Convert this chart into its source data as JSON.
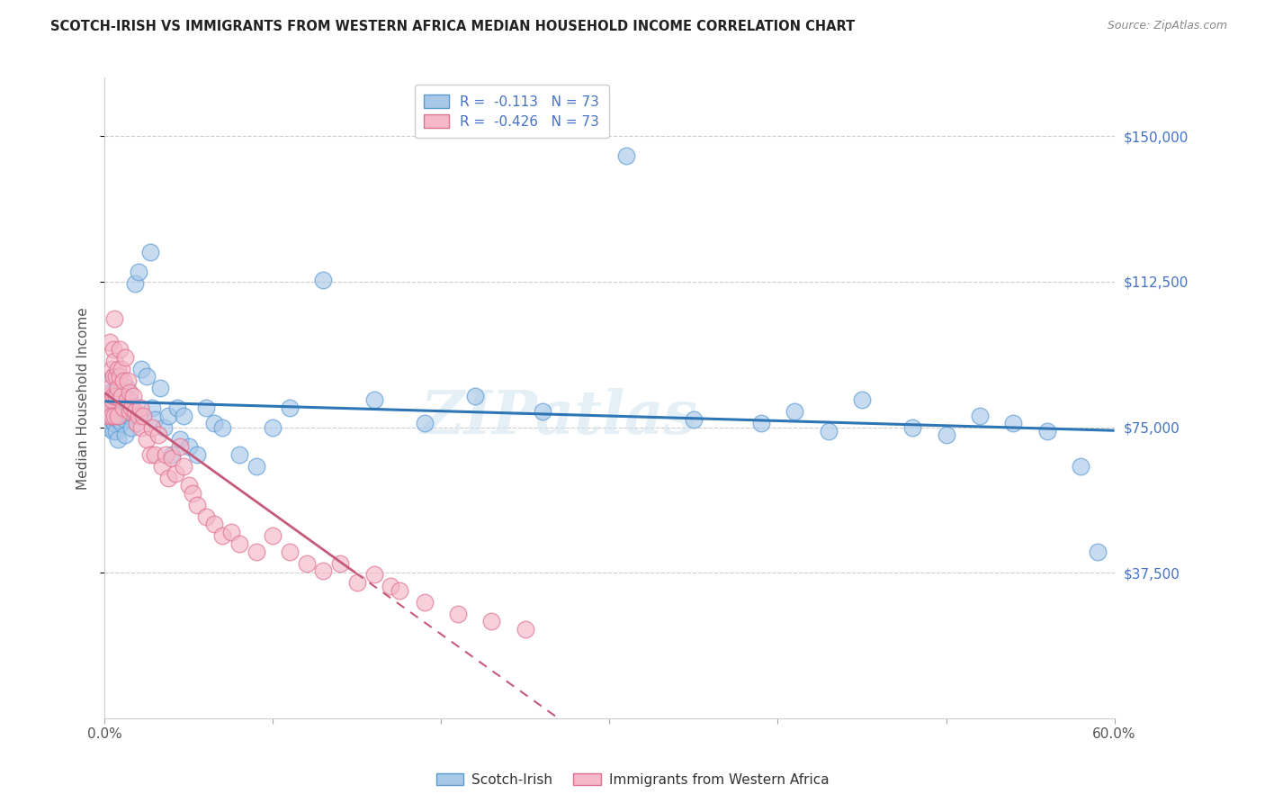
{
  "title": "SCOTCH-IRISH VS IMMIGRANTS FROM WESTERN AFRICA MEDIAN HOUSEHOLD INCOME CORRELATION CHART",
  "source": "Source: ZipAtlas.com",
  "ylabel": "Median Household Income",
  "ytick_labels": [
    "$37,500",
    "$75,000",
    "$112,500",
    "$150,000"
  ],
  "ytick_values": [
    37500,
    75000,
    112500,
    150000
  ],
  "ylim_max": 165000,
  "xlim": [
    0.0,
    0.6
  ],
  "legend_label_blue": "Scotch-Irish",
  "legend_label_pink": "Immigrants from Western Africa",
  "blue_color": "#a8c8e8",
  "blue_edge_color": "#5b9bd5",
  "pink_color": "#f4b8c8",
  "pink_edge_color": "#e07090",
  "blue_line_color": "#2e75b6",
  "pink_line_color": "#c55a7a",
  "watermark": "ZIPatlas",
  "blue_r": "R = ",
  "blue_r_val": "-0.113",
  "blue_n": "N = 73",
  "pink_r": "R = ",
  "pink_r_val": "-0.426",
  "pink_n": "N = 73",
  "blue_scatter_x": [
    0.001,
    0.002,
    0.002,
    0.003,
    0.003,
    0.003,
    0.004,
    0.004,
    0.005,
    0.005,
    0.005,
    0.006,
    0.006,
    0.007,
    0.007,
    0.007,
    0.008,
    0.008,
    0.009,
    0.009,
    0.01,
    0.01,
    0.011,
    0.011,
    0.012,
    0.012,
    0.013,
    0.014,
    0.015,
    0.015,
    0.016,
    0.017,
    0.018,
    0.02,
    0.022,
    0.025,
    0.027,
    0.028,
    0.03,
    0.033,
    0.035,
    0.038,
    0.04,
    0.043,
    0.045,
    0.047,
    0.05,
    0.055,
    0.06,
    0.065,
    0.07,
    0.08,
    0.09,
    0.1,
    0.11,
    0.13,
    0.16,
    0.19,
    0.22,
    0.26,
    0.31,
    0.35,
    0.39,
    0.41,
    0.43,
    0.45,
    0.48,
    0.5,
    0.52,
    0.54,
    0.56,
    0.58,
    0.59
  ],
  "blue_scatter_y": [
    78000,
    81000,
    75000,
    80000,
    78000,
    84000,
    77000,
    80000,
    79000,
    74000,
    88000,
    76000,
    82000,
    80000,
    74000,
    85000,
    77000,
    72000,
    81000,
    78000,
    83000,
    76000,
    79000,
    84000,
    77000,
    73000,
    85000,
    80000,
    78000,
    82000,
    75000,
    79000,
    112000,
    115000,
    90000,
    88000,
    120000,
    80000,
    77000,
    85000,
    75000,
    78000,
    68000,
    80000,
    72000,
    78000,
    70000,
    68000,
    80000,
    76000,
    75000,
    68000,
    65000,
    75000,
    80000,
    113000,
    82000,
    76000,
    83000,
    79000,
    145000,
    77000,
    76000,
    79000,
    74000,
    82000,
    75000,
    73000,
    78000,
    76000,
    74000,
    65000,
    43000
  ],
  "pink_scatter_x": [
    0.001,
    0.002,
    0.002,
    0.003,
    0.003,
    0.003,
    0.004,
    0.004,
    0.004,
    0.005,
    0.005,
    0.005,
    0.006,
    0.006,
    0.006,
    0.007,
    0.007,
    0.008,
    0.008,
    0.008,
    0.009,
    0.009,
    0.01,
    0.01,
    0.011,
    0.011,
    0.012,
    0.013,
    0.014,
    0.015,
    0.015,
    0.016,
    0.017,
    0.018,
    0.019,
    0.02,
    0.021,
    0.022,
    0.023,
    0.025,
    0.027,
    0.028,
    0.03,
    0.032,
    0.034,
    0.036,
    0.038,
    0.04,
    0.042,
    0.045,
    0.047,
    0.05,
    0.052,
    0.055,
    0.06,
    0.065,
    0.07,
    0.075,
    0.08,
    0.09,
    0.1,
    0.11,
    0.12,
    0.13,
    0.14,
    0.15,
    0.16,
    0.17,
    0.175,
    0.19,
    0.21,
    0.23,
    0.25
  ],
  "pink_scatter_y": [
    82000,
    78000,
    83000,
    80000,
    97000,
    85000,
    90000,
    82000,
    78000,
    95000,
    88000,
    83000,
    103000,
    92000,
    78000,
    88000,
    83000,
    90000,
    85000,
    78000,
    95000,
    88000,
    90000,
    83000,
    87000,
    80000,
    93000,
    82000,
    87000,
    79000,
    84000,
    80000,
    83000,
    79000,
    76000,
    78000,
    80000,
    75000,
    78000,
    72000,
    68000,
    75000,
    68000,
    73000,
    65000,
    68000,
    62000,
    67000,
    63000,
    70000,
    65000,
    60000,
    58000,
    55000,
    52000,
    50000,
    47000,
    48000,
    45000,
    43000,
    47000,
    43000,
    40000,
    38000,
    40000,
    35000,
    37000,
    34000,
    33000,
    30000,
    27000,
    25000,
    23000
  ]
}
